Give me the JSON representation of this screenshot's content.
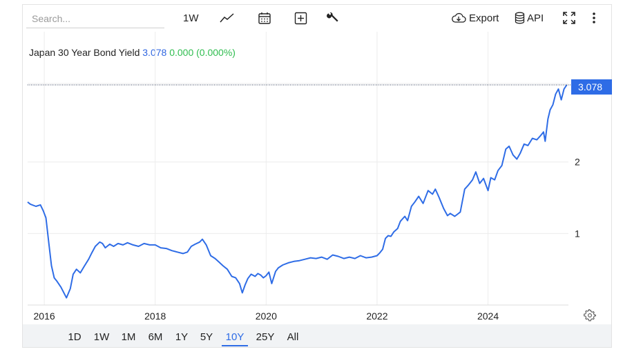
{
  "toolbar": {
    "search_placeholder": "Search...",
    "interval_label": "1W",
    "export_label": "Export",
    "api_label": "API",
    "icons": [
      "line-chart-icon",
      "calendar-icon",
      "plus-box-icon",
      "wrench-icon",
      "cloud-download-icon",
      "database-icon",
      "fullscreen-icon",
      "more-vertical-icon"
    ]
  },
  "header": {
    "name": "Japan 30 Year Bond Yield",
    "value": "3.078",
    "change": "0.000 (0.000%)"
  },
  "colors": {
    "line": "#2e6ce6",
    "value": "#2f66e0",
    "change": "#2fbd4f",
    "accent": "#2e6ce6"
  },
  "ranges": {
    "items": [
      "1D",
      "1W",
      "1M",
      "6M",
      "1Y",
      "5Y",
      "10Y",
      "25Y",
      "All"
    ],
    "active": "10Y"
  },
  "chart_data": {
    "type": "line",
    "title": "Japan 30 Year Bond Yield",
    "xlabel": "",
    "ylabel": "",
    "last_value_label": "3.078",
    "x_ticks": [
      "2016",
      "2018",
      "2020",
      "2022",
      "2024"
    ],
    "y_ticks": [
      "1",
      "2"
    ],
    "xlim": [
      2015.7,
      2025.45
    ],
    "ylim": [
      0,
      3.3
    ],
    "grid": true,
    "series": [
      {
        "x": [
          2015.7,
          2015.75,
          2015.85,
          2015.93,
          2015.98,
          2016.03,
          2016.08,
          2016.13,
          2016.18,
          2016.23,
          2016.3,
          2016.4,
          2016.47,
          2016.52,
          2016.58,
          2016.65,
          2016.72,
          2016.8,
          2016.85,
          2016.92,
          2017.0,
          2017.05,
          2017.1,
          2017.18,
          2017.25,
          2017.33,
          2017.42,
          2017.5,
          2017.6,
          2017.7,
          2017.8,
          2017.9,
          2018.0,
          2018.1,
          2018.2,
          2018.3,
          2018.4,
          2018.5,
          2018.58,
          2018.65,
          2018.72,
          2018.8,
          2018.85,
          2018.92,
          2019.0,
          2019.08,
          2019.15,
          2019.22,
          2019.3,
          2019.38,
          2019.45,
          2019.52,
          2019.57,
          2019.62,
          2019.67,
          2019.73,
          2019.8,
          2019.85,
          2019.9,
          2019.95,
          2020.0,
          2020.05,
          2020.1,
          2020.17,
          2020.22,
          2020.3,
          2020.4,
          2020.5,
          2020.6,
          2020.7,
          2020.8,
          2020.9,
          2021.0,
          2021.1,
          2021.2,
          2021.3,
          2021.4,
          2021.5,
          2021.6,
          2021.7,
          2021.8,
          2021.9,
          2022.0,
          2022.05,
          2022.1,
          2022.15,
          2022.2,
          2022.25,
          2022.3,
          2022.37,
          2022.42,
          2022.5,
          2022.55,
          2022.62,
          2022.68,
          2022.75,
          2022.83,
          2022.92,
          2023.0,
          2023.05,
          2023.12,
          2023.2,
          2023.27,
          2023.32,
          2023.4,
          2023.5,
          2023.58,
          2023.65,
          2023.72,
          2023.78,
          2023.85,
          2023.92,
          2024.0,
          2024.05,
          2024.12,
          2024.18,
          2024.25,
          2024.32,
          2024.38,
          2024.45,
          2024.52,
          2024.58,
          2024.65,
          2024.72,
          2024.8,
          2024.88,
          2024.95,
          2025.0,
          2025.03,
          2025.08,
          2025.12,
          2025.17,
          2025.22,
          2025.27,
          2025.32,
          2025.37,
          2025.42
        ],
        "y": [
          1.44,
          1.41,
          1.38,
          1.4,
          1.32,
          1.22,
          0.88,
          0.55,
          0.38,
          0.33,
          0.25,
          0.1,
          0.23,
          0.43,
          0.5,
          0.45,
          0.54,
          0.64,
          0.72,
          0.82,
          0.88,
          0.86,
          0.8,
          0.85,
          0.82,
          0.86,
          0.84,
          0.87,
          0.84,
          0.82,
          0.86,
          0.84,
          0.84,
          0.8,
          0.79,
          0.76,
          0.74,
          0.72,
          0.74,
          0.82,
          0.85,
          0.88,
          0.92,
          0.84,
          0.69,
          0.65,
          0.6,
          0.55,
          0.5,
          0.4,
          0.38,
          0.3,
          0.17,
          0.28,
          0.37,
          0.43,
          0.4,
          0.44,
          0.42,
          0.38,
          0.41,
          0.46,
          0.3,
          0.47,
          0.52,
          0.56,
          0.59,
          0.61,
          0.62,
          0.64,
          0.66,
          0.65,
          0.67,
          0.64,
          0.7,
          0.68,
          0.65,
          0.67,
          0.65,
          0.69,
          0.66,
          0.67,
          0.69,
          0.73,
          0.78,
          0.93,
          0.97,
          0.96,
          1.02,
          1.07,
          1.17,
          1.24,
          1.18,
          1.38,
          1.44,
          1.52,
          1.42,
          1.6,
          1.55,
          1.62,
          1.5,
          1.35,
          1.25,
          1.28,
          1.24,
          1.3,
          1.62,
          1.68,
          1.75,
          1.86,
          1.7,
          1.77,
          1.6,
          1.78,
          1.75,
          1.88,
          1.95,
          2.18,
          2.22,
          2.1,
          2.04,
          2.12,
          2.25,
          2.23,
          2.33,
          2.31,
          2.37,
          2.42,
          2.29,
          2.6,
          2.73,
          2.8,
          2.95,
          3.02,
          2.87,
          3.02,
          3.078
        ]
      }
    ]
  }
}
